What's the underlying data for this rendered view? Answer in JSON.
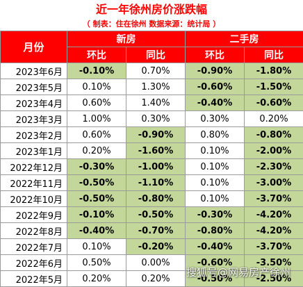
{
  "title": "近一年徐州房价涨跌幅",
  "subtitle": "（ 制表：住在徐州   数据来源：统计局 ）",
  "headers": {
    "month": "月份",
    "new_home": "新房",
    "second_hand": "二手房",
    "mom": "环比",
    "yoy": "同比"
  },
  "colors": {
    "header_bg": "#ff0000",
    "negative_bg": "#c4d79b"
  },
  "rows": [
    {
      "month": "2023年6月",
      "new_mom": "-0.10%",
      "new_yoy": "0.70%",
      "sh_mom": "-0.90%",
      "sh_yoy": "-1.80%"
    },
    {
      "month": "2023年5月",
      "new_mom": "0.10%",
      "new_yoy": "1.30%",
      "sh_mom": "-0.60%",
      "sh_yoy": "-1.50%"
    },
    {
      "month": "2023年4月",
      "new_mom": "0.60%",
      "new_yoy": "1.40%",
      "sh_mom": "-0.40%",
      "sh_yoy": "-0.60%"
    },
    {
      "month": "2023年3月",
      "new_mom": "1.00%",
      "new_yoy": "0.30%",
      "sh_mom": "0.30%",
      "sh_yoy": "0.20%"
    },
    {
      "month": "2023年2月",
      "new_mom": "0.60%",
      "new_yoy": "-0.90%",
      "sh_mom": "0.80%",
      "sh_yoy": "-0.80%"
    },
    {
      "month": "2023年1月",
      "new_mom": "0.20%",
      "new_yoy": "-1.60%",
      "sh_mom": "0.10%",
      "sh_yoy": "-2.00%"
    },
    {
      "month": "2022年12月",
      "new_mom": "-0.30%",
      "new_yoy": "-1.00%",
      "sh_mom": "0.10%",
      "sh_yoy": "-2.30%"
    },
    {
      "month": "2022年11月",
      "new_mom": "-0.50%",
      "new_yoy": "-1.10%",
      "sh_mom": "0.10%",
      "sh_yoy": "-3.00%"
    },
    {
      "month": "2022年10月",
      "new_mom": "-0.50%",
      "new_yoy": "-0.80%",
      "sh_mom": "0.10%",
      "sh_yoy": "-3.70%"
    },
    {
      "month": "2022年9月",
      "new_mom": "-0.10%",
      "new_yoy": "-0.50%",
      "sh_mom": "-0.30%",
      "sh_yoy": "-4.20%"
    },
    {
      "month": "2022年8月",
      "new_mom": "-0.40%",
      "new_yoy": "-0.70%",
      "sh_mom": "-0.80%",
      "sh_yoy": "-4.20%"
    },
    {
      "month": "2022年7月",
      "new_mom": "0.10%",
      "new_yoy": "-0.20%",
      "sh_mom": "-0.40%",
      "sh_yoy": "-3.70%"
    },
    {
      "month": "2022年6月",
      "new_mom": "0.50%",
      "new_yoy": "0.00%",
      "sh_mom": "-0.60%",
      "sh_yoy": "-3.50%"
    },
    {
      "month": "2022年5月",
      "new_mom": "0.20%",
      "new_yoy": "0.20%",
      "sh_mom": "-0.50%",
      "sh_yoy": "-2.50%"
    }
  ],
  "watermark": "搜狐号@网易房产徐州"
}
